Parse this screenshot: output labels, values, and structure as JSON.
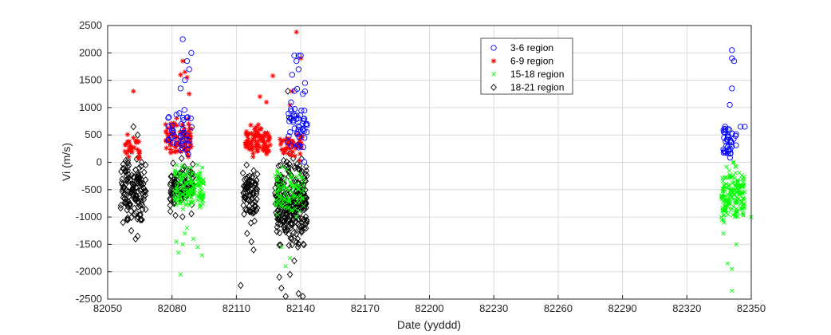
{
  "chart_data": {
    "type": "scatter",
    "xlabel": "Date (yyddd)",
    "ylabel": "Vi (m/s)",
    "xlim": [
      82050,
      82350
    ],
    "ylim": [
      -2500,
      2500
    ],
    "xticks": [
      82050,
      82080,
      82110,
      82140,
      82170,
      82200,
      82230,
      82260,
      82290,
      82320,
      82350
    ],
    "yticks": [
      2500,
      2000,
      1500,
      1000,
      500,
      0,
      -500,
      -1000,
      -1500,
      -2000,
      -2500
    ],
    "grid": true,
    "legend_position": "top-center-right",
    "series": [
      {
        "name": "3-6 region",
        "marker": "circle",
        "color": "#0000ff",
        "clusters": [
          {
            "x": [
              82078,
              82090
            ],
            "y": [
              -100,
              1200
            ],
            "n": 40
          },
          {
            "x": [
              82134,
              82143
            ],
            "y": [
              -100,
              1500
            ],
            "n": 50
          },
          {
            "x": [
              82337,
              82343
            ],
            "y": [
              -100,
              900
            ],
            "n": 40
          }
        ],
        "points": [
          [
            82085,
            2250
          ],
          [
            82087,
            1850
          ],
          [
            82089,
            2000
          ],
          [
            82088,
            1700
          ],
          [
            82086,
            1500
          ],
          [
            82084,
            1350
          ],
          [
            82136,
            1600
          ],
          [
            82137,
            1950
          ],
          [
            82138,
            1850
          ],
          [
            82140,
            1950
          ],
          [
            82139,
            1700
          ],
          [
            82142,
            1450
          ],
          [
            82141,
            1250
          ],
          [
            82139,
            1950
          ],
          [
            82341,
            2050
          ],
          [
            82341,
            1900
          ],
          [
            82342,
            1850
          ],
          [
            82341,
            1350
          ],
          [
            82340,
            1050
          ],
          [
            82345,
            650
          ],
          [
            82347,
            650
          ]
        ]
      },
      {
        "name": "6-9 region",
        "marker": "star",
        "color": "#ff0000",
        "clusters": [
          {
            "x": [
              82058,
              82066
            ],
            "y": [
              -50,
              600
            ],
            "n": 30
          },
          {
            "x": [
              82077,
              82089
            ],
            "y": [
              -50,
              1000
            ],
            "n": 90
          },
          {
            "x": [
              82114,
              82126
            ],
            "y": [
              -50,
              800
            ],
            "n": 90
          },
          {
            "x": [
              82130,
              82141
            ],
            "y": [
              -50,
              700
            ],
            "n": 50
          }
        ],
        "points": [
          [
            82062,
            1300
          ],
          [
            82087,
            1550
          ],
          [
            82088,
            1250
          ],
          [
            82086,
            1650
          ],
          [
            82085,
            1850
          ],
          [
            82084,
            1600
          ],
          [
            82121,
            1200
          ],
          [
            82124,
            1100
          ],
          [
            82127,
            1580
          ],
          [
            82138,
            2380
          ],
          [
            82140,
            1900
          ],
          [
            82136,
            1300
          ],
          [
            82135,
            1050
          ]
        ]
      },
      {
        "name": "15-18 region",
        "marker": "x",
        "color": "#00ff00",
        "clusters": [
          {
            "x": [
              82081,
              82095
            ],
            "y": [
              -1100,
              100
            ],
            "n": 150
          },
          {
            "x": [
              82128,
              82142
            ],
            "y": [
              -1200,
              100
            ],
            "n": 90
          },
          {
            "x": [
              82336,
              82347
            ],
            "y": [
              -1300,
              100
            ],
            "n": 170
          }
        ],
        "points": [
          [
            82082,
            -1450
          ],
          [
            82083,
            -1650
          ],
          [
            82084,
            -2050
          ],
          [
            82085,
            -1500
          ],
          [
            82086,
            -1300
          ],
          [
            82087,
            -1200
          ],
          [
            82090,
            -1400
          ],
          [
            82092,
            -1550
          ],
          [
            82094,
            -1700
          ],
          [
            82131,
            -1550
          ],
          [
            82133,
            -1900
          ],
          [
            82135,
            -1750
          ],
          [
            82339,
            -1850
          ],
          [
            82341,
            -1950
          ],
          [
            82343,
            -1500
          ],
          [
            82341,
            -2350
          ],
          [
            82337,
            -1300
          ],
          [
            82350,
            -1000
          ]
        ]
      },
      {
        "name": "18-21 region",
        "marker": "diamond",
        "color": "#000000",
        "clusters": [
          {
            "x": [
              82056,
              82068
            ],
            "y": [
              -1300,
              300
            ],
            "n": 140
          },
          {
            "x": [
              82079,
              82090
            ],
            "y": [
              -1100,
              200
            ],
            "n": 100
          },
          {
            "x": [
              82113,
              82120
            ],
            "y": [
              -1200,
              100
            ],
            "n": 80
          },
          {
            "x": [
              82128,
              82143
            ],
            "y": [
              -1800,
              300
            ],
            "n": 280
          }
        ],
        "points": [
          [
            82059,
            -1050
          ],
          [
            82061,
            -1250
          ],
          [
            82063,
            -1400
          ],
          [
            82064,
            -1350
          ],
          [
            82066,
            -1050
          ],
          [
            82062,
            650
          ],
          [
            82064,
            500
          ],
          [
            82115,
            -1300
          ],
          [
            82117,
            -1450
          ],
          [
            82118,
            -1600
          ],
          [
            82112,
            -2250
          ],
          [
            82130,
            -2100
          ],
          [
            82131,
            -2300
          ],
          [
            82133,
            -2450
          ],
          [
            82135,
            -2050
          ],
          [
            82137,
            -1800
          ],
          [
            82139,
            -2400
          ],
          [
            82141,
            -2450
          ],
          [
            82134,
            1300
          ],
          [
            82135,
            800
          ]
        ]
      }
    ]
  }
}
